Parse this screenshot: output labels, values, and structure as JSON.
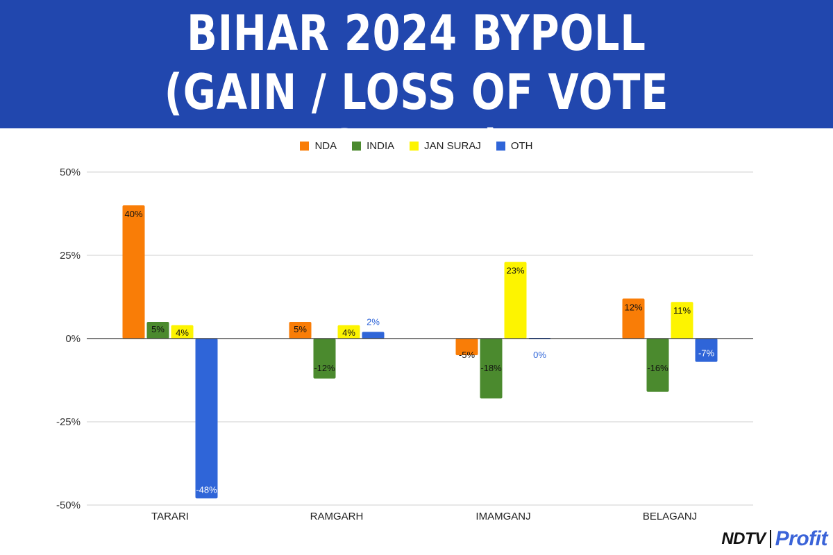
{
  "banner": {
    "line1": "BIHAR 2024 BYPOLL",
    "line2": "(GAIN / LOSS OF VOTE SHARE)",
    "background": "#2147ae"
  },
  "chart_data": {
    "type": "bar",
    "title": "",
    "xlabel": "",
    "ylabel": "",
    "categories": [
      "TARARI",
      "RAMGARH",
      "IMAMGANJ",
      "BELAGANJ"
    ],
    "series": [
      {
        "name": "NDA",
        "color": "#f97d07",
        "values": [
          40,
          5,
          -5,
          12
        ],
        "labels": [
          "40%",
          "5%",
          "-5%",
          "12%"
        ]
      },
      {
        "name": "INDIA",
        "color": "#4b8a2e",
        "values": [
          5,
          -12,
          -18,
          -16
        ],
        "labels": [
          "5%",
          "-12%",
          "-18%",
          "-16%"
        ]
      },
      {
        "name": "JAN SURAJ",
        "color": "#fdf400",
        "values": [
          4,
          4,
          23,
          11
        ],
        "labels": [
          "4%",
          "4%",
          "23%",
          "11%"
        ]
      },
      {
        "name": "OTH",
        "color": "#2f65d8",
        "values": [
          -48,
          2,
          0,
          -7
        ],
        "labels": [
          "-48%",
          "2%",
          "0%",
          "-7%"
        ]
      }
    ],
    "ylim": [
      -50,
      50
    ],
    "yticks": [
      50,
      25,
      0,
      -25,
      -50
    ],
    "ytick_labels": [
      "50%",
      "25%",
      "0%",
      "-25%",
      "-50%"
    ],
    "grid": true,
    "legend": "top-center"
  },
  "logo": {
    "ndtv": "NDTV",
    "profit": "Profit"
  }
}
